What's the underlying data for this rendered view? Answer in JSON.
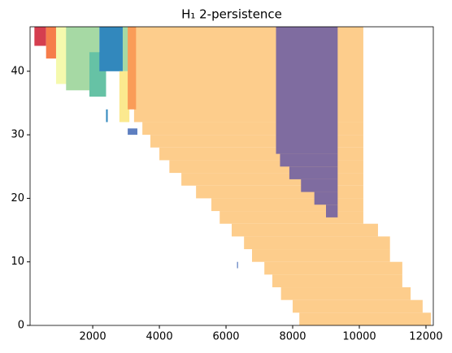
{
  "chart_data": {
    "type": "persistence",
    "title": "H₁ 2-persistence",
    "xlim": [
      120,
      12220
    ],
    "ylim": [
      0,
      47
    ],
    "xticks": [
      2000,
      4000,
      6000,
      8000,
      10000,
      12000
    ],
    "yticks": [
      0,
      10,
      20,
      30,
      40
    ],
    "regions": [
      {
        "color": "#fdcd8c",
        "rows": [
          {
            "y": [
              0,
              2
            ],
            "x": [
              8200,
              12150
            ]
          },
          {
            "y": [
              2,
              4
            ],
            "x": [
              8000,
              11900
            ]
          },
          {
            "y": [
              4,
              6
            ],
            "x": [
              7650,
              11540
            ]
          },
          {
            "y": [
              6,
              8
            ],
            "x": [
              7390,
              11290
            ]
          },
          {
            "y": [
              8,
              10
            ],
            "x": [
              7150,
              11290
            ]
          },
          {
            "y": [
              10,
              12
            ],
            "x": [
              6780,
              10920
            ]
          },
          {
            "y": [
              12,
              14
            ],
            "x": [
              6540,
              10920
            ]
          },
          {
            "y": [
              14,
              16
            ],
            "x": [
              6170,
              10560
            ]
          },
          {
            "y": [
              16,
              18
            ],
            "x": [
              5810,
              10120
            ]
          },
          {
            "y": [
              18,
              20
            ],
            "x": [
              5560,
              10120
            ]
          },
          {
            "y": [
              20,
              22
            ],
            "x": [
              5100,
              10120
            ]
          },
          {
            "y": [
              22,
              24
            ],
            "x": [
              4660,
              10120
            ]
          },
          {
            "y": [
              24,
              26
            ],
            "x": [
              4300,
              10120
            ]
          },
          {
            "y": [
              26,
              28
            ],
            "x": [
              4000,
              10120
            ]
          },
          {
            "y": [
              28,
              30
            ],
            "x": [
              3730,
              10120
            ]
          },
          {
            "y": [
              30,
              32
            ],
            "x": [
              3490,
              10120
            ]
          },
          {
            "y": [
              32,
              47
            ],
            "x": [
              3240,
              10120
            ]
          }
        ]
      },
      {
        "color": "#7f6ca0",
        "rows": [
          {
            "y": [
              27,
              47
            ],
            "x": [
              7500,
              9350
            ]
          },
          {
            "y": [
              25,
              27
            ],
            "x": [
              7620,
              9350
            ]
          },
          {
            "y": [
              23,
              25
            ],
            "x": [
              7900,
              9350
            ]
          },
          {
            "y": [
              21,
              23
            ],
            "x": [
              8250,
              9350
            ]
          },
          {
            "y": [
              19,
              21
            ],
            "x": [
              8650,
              9350
            ]
          },
          {
            "y": [
              17,
              19
            ],
            "x": [
              9000,
              9350
            ]
          }
        ]
      },
      {
        "color": "#d53e4f",
        "rows": [
          {
            "y": [
              44,
              47
            ],
            "x": [
              250,
              600
            ]
          }
        ]
      },
      {
        "color": "#f67d4a",
        "rows": [
          {
            "y": [
              42,
              47
            ],
            "x": [
              600,
              900
            ]
          },
          {
            "y": [
              41,
              42
            ],
            "x": [
              1000,
              1250
            ]
          }
        ]
      },
      {
        "color": "#f5f9ad",
        "rows": [
          {
            "y": [
              38,
              47
            ],
            "x": [
              900,
              1800
            ]
          }
        ]
      },
      {
        "color": "#a6d9a4",
        "rows": [
          {
            "y": [
              37,
              47
            ],
            "x": [
              1200,
              2200
            ]
          },
          {
            "y": [
              40,
              47
            ],
            "x": [
              2900,
              3100
            ]
          }
        ]
      },
      {
        "color": "#66c2a5",
        "rows": [
          {
            "y": [
              36,
              43
            ],
            "x": [
              1900,
              2400
            ]
          }
        ]
      },
      {
        "color": "#3288bd",
        "rows": [
          {
            "y": [
              40,
              47
            ],
            "x": [
              2200,
              2900
            ]
          },
          {
            "y": [
              32,
              34
            ],
            "x": [
              2400,
              2450
            ]
          }
        ]
      },
      {
        "color": "#fbe98f",
        "rows": [
          {
            "y": [
              32,
              40
            ],
            "x": [
              2800,
              3100
            ]
          }
        ]
      },
      {
        "color": "#fa9c58",
        "rows": [
          {
            "y": [
              34,
              47
            ],
            "x": [
              3050,
              3300
            ]
          }
        ]
      },
      {
        "color": "#5e7fc0",
        "rows": [
          {
            "y": [
              30,
              31
            ],
            "x": [
              3050,
              3340
            ]
          },
          {
            "y": [
              9,
              10
            ],
            "x": [
              6330,
              6360
            ]
          }
        ]
      }
    ]
  }
}
